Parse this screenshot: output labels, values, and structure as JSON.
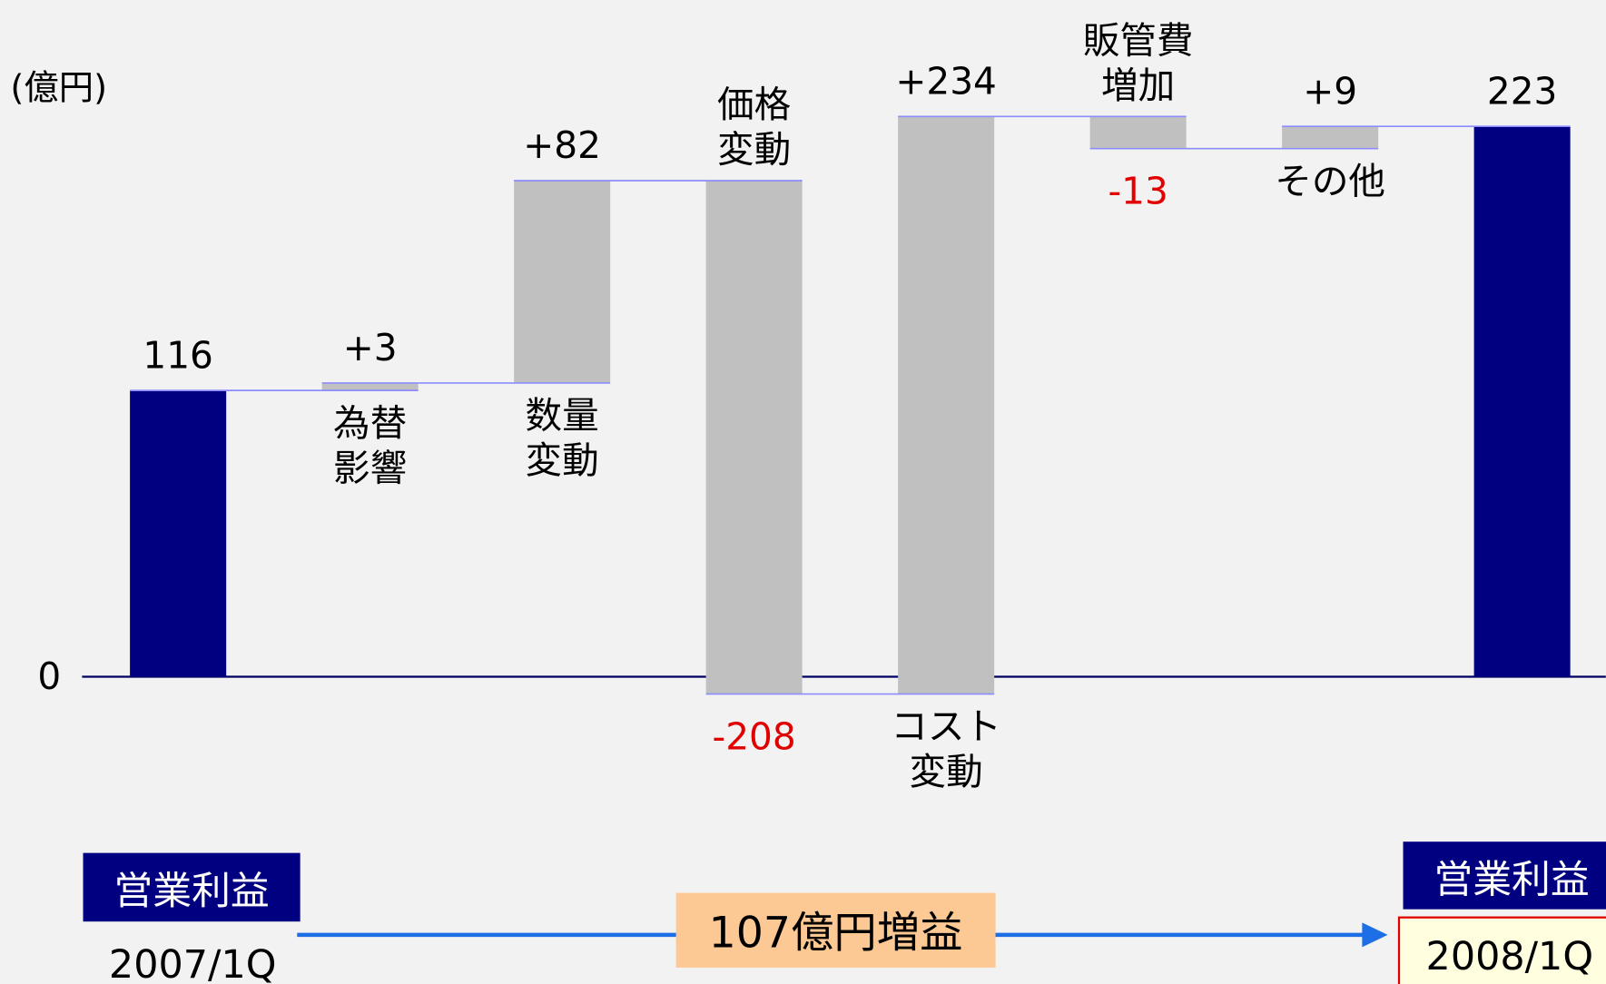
{
  "chart_data": {
    "type": "waterfall",
    "y_label": "(億円)",
    "categories": [
      null,
      "為替影響",
      "数量変動",
      "価格変動",
      "コスト変動",
      "販管費増加",
      "その他",
      null
    ],
    "values": [
      116,
      3,
      82,
      -208,
      234,
      -13,
      9,
      223
    ],
    "value_labels": [
      "116",
      "+3",
      "+82",
      "-208",
      "+234",
      "-13",
      "+9",
      "223"
    ],
    "total_color": "#000080",
    "delta_color": "#c0c0c0",
    "connector_color": "#8c8cff",
    "negative_label_color": "#e00000",
    "ylim": [
      -124.5,
      274.2
    ],
    "yticks": [
      0
    ],
    "annotations": {
      "start_label": "営業利益",
      "start_period": "2007/1Q",
      "change": "107億円増益",
      "end_label": "営業利益",
      "end_period": "2008/1Q"
    }
  }
}
